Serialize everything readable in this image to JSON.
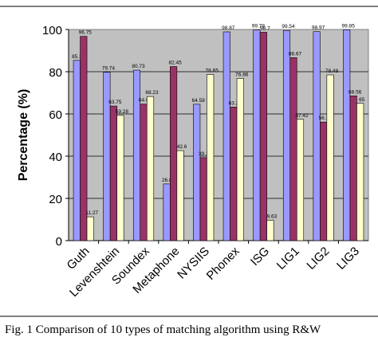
{
  "caption": "Fig. 1 Comparison of 10 types of matching algorithm using R&W",
  "chart_data": {
    "type": "bar",
    "title": "",
    "xlabel": "",
    "ylabel": "Percentage (%)",
    "ylim": [
      0,
      100
    ],
    "yticks": [
      "0",
      "20",
      "40",
      "60",
      "80",
      "100"
    ],
    "grid": true,
    "plot_background": "#c0c0c0",
    "categories": [
      "Guth",
      "Levenshtein",
      "Soundex",
      "Metaphone",
      "NYSIIS",
      "Phonex",
      "ISG",
      "LIG1",
      "LIG2",
      "LIG3"
    ],
    "series": [
      {
        "color": "#9999ff",
        "values": [
          85.35,
          79.74,
          80.73,
          26.84,
          64.58,
          98.87,
          99.78,
          99.54,
          98.97,
          99.85
        ],
        "labels": [
          "85.35",
          "79.74",
          "80.73",
          "26.84",
          "64.58",
          "98.87",
          "99.78",
          "99.54",
          "98.97",
          "99.85"
        ]
      },
      {
        "color": "#993366",
        "values": [
          96.75,
          63.75,
          64.65,
          82.45,
          39.29,
          63.25,
          98.7,
          86.67,
          56.15,
          68.56
        ],
        "labels": [
          "96.75",
          "63.75",
          "64.65",
          "82.45",
          "39.29",
          "63.25",
          "98.7",
          "86.67",
          "56.15",
          "68.56"
        ]
      },
      {
        "color": "#ffffcc",
        "values": [
          11.27,
          59.28,
          68.23,
          42.6,
          78.65,
          76.86,
          9.63,
          57.42,
          78.48,
          65
        ],
        "labels": [
          "11.27",
          "59.28",
          "68.23",
          "42.6",
          "78.65",
          "76.86",
          "9.63",
          "57.42",
          "78.48",
          "65"
        ]
      }
    ]
  }
}
